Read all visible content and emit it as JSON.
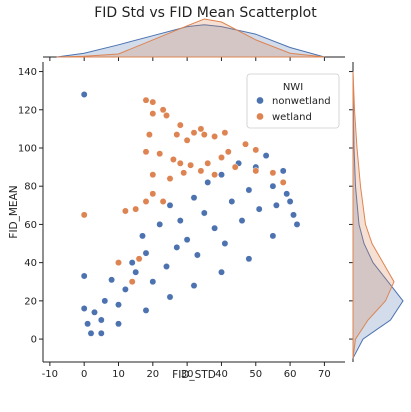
{
  "chart_data": {
    "type": "scatter",
    "title": "FID Std vs FID Mean Scatterplot",
    "xlabel": "FID_STD",
    "ylabel": "FID_MEAN",
    "xlim": [
      -12,
      76
    ],
    "ylim": [
      -12,
      145
    ],
    "xticks": [
      -10,
      0,
      10,
      20,
      30,
      40,
      50,
      60,
      70
    ],
    "yticks": [
      0,
      20,
      40,
      60,
      80,
      100,
      120,
      140
    ],
    "grid": false,
    "legend": {
      "title": "NWI",
      "placement": "top-right"
    },
    "series": [
      {
        "name": "nonwetland",
        "color": "#4c72b0",
        "points": [
          [
            0,
            128
          ],
          [
            0,
            33
          ],
          [
            0,
            16
          ],
          [
            1,
            8
          ],
          [
            2,
            3
          ],
          [
            3,
            14
          ],
          [
            5,
            10
          ],
          [
            6,
            20
          ],
          [
            8,
            31
          ],
          [
            10,
            18
          ],
          [
            12,
            26
          ],
          [
            14,
            40
          ],
          [
            15,
            35
          ],
          [
            17,
            54
          ],
          [
            18,
            45
          ],
          [
            20,
            30
          ],
          [
            22,
            60
          ],
          [
            24,
            38
          ],
          [
            25,
            70
          ],
          [
            27,
            48
          ],
          [
            28,
            62
          ],
          [
            30,
            52
          ],
          [
            32,
            74
          ],
          [
            33,
            44
          ],
          [
            35,
            66
          ],
          [
            36,
            82
          ],
          [
            38,
            58
          ],
          [
            40,
            86
          ],
          [
            41,
            50
          ],
          [
            43,
            72
          ],
          [
            45,
            92
          ],
          [
            46,
            62
          ],
          [
            48,
            78
          ],
          [
            50,
            90
          ],
          [
            51,
            68
          ],
          [
            53,
            96
          ],
          [
            55,
            80
          ],
          [
            56,
            70
          ],
          [
            58,
            88
          ],
          [
            59,
            76
          ],
          [
            60,
            72
          ],
          [
            61,
            65
          ],
          [
            62,
            60
          ],
          [
            55,
            54
          ],
          [
            48,
            42
          ],
          [
            40,
            35
          ],
          [
            32,
            28
          ],
          [
            25,
            22
          ],
          [
            18,
            15
          ],
          [
            10,
            8
          ],
          [
            5,
            3
          ]
        ]
      },
      {
        "name": "wetland",
        "color": "#dd8452",
        "points": [
          [
            0,
            65
          ],
          [
            18,
            125
          ],
          [
            20,
            124
          ],
          [
            20,
            118
          ],
          [
            23,
            120
          ],
          [
            24,
            117
          ],
          [
            19,
            107
          ],
          [
            28,
            112
          ],
          [
            27,
            107
          ],
          [
            30,
            104
          ],
          [
            32,
            108
          ],
          [
            34,
            110
          ],
          [
            35,
            107
          ],
          [
            38,
            106
          ],
          [
            41,
            108
          ],
          [
            18,
            98
          ],
          [
            22,
            97
          ],
          [
            26,
            94
          ],
          [
            28,
            92
          ],
          [
            31,
            91
          ],
          [
            36,
            92
          ],
          [
            40,
            95
          ],
          [
            42,
            98
          ],
          [
            47,
            102
          ],
          [
            50,
            99
          ],
          [
            20,
            86
          ],
          [
            25,
            84
          ],
          [
            29,
            87
          ],
          [
            34,
            88
          ],
          [
            38,
            86
          ],
          [
            44,
            90
          ],
          [
            50,
            88
          ],
          [
            55,
            87
          ],
          [
            58,
            82
          ],
          [
            12,
            67
          ],
          [
            15,
            68
          ],
          [
            18,
            72
          ],
          [
            20,
            76
          ],
          [
            23,
            72
          ],
          [
            14,
            30
          ],
          [
            16,
            42
          ],
          [
            10,
            40
          ]
        ]
      }
    ],
    "marginal_x": {
      "x": [
        -8,
        0,
        10,
        20,
        30,
        35,
        40,
        50,
        60,
        70
      ],
      "series": [
        {
          "name": "nonwetland",
          "density": [
            0.0,
            0.1,
            0.32,
            0.56,
            0.8,
            0.85,
            0.8,
            0.6,
            0.25,
            0.0
          ]
        },
        {
          "name": "wetland",
          "density": [
            0.0,
            0.02,
            0.08,
            0.45,
            0.82,
            1.0,
            0.92,
            0.45,
            0.1,
            0.0
          ]
        }
      ]
    },
    "marginal_y": {
      "y": [
        -10,
        0,
        10,
        20,
        30,
        40,
        50,
        60,
        80,
        100,
        120,
        140
      ],
      "series": [
        {
          "name": "nonwetland",
          "density": [
            0.0,
            0.2,
            0.75,
            1.0,
            0.7,
            0.4,
            0.22,
            0.12,
            0.05,
            0.02,
            0.01,
            0.0
          ]
        },
        {
          "name": "wetland",
          "density": [
            0.0,
            0.05,
            0.3,
            0.65,
            0.82,
            0.6,
            0.38,
            0.25,
            0.15,
            0.08,
            0.03,
            0.0
          ]
        }
      ]
    }
  }
}
